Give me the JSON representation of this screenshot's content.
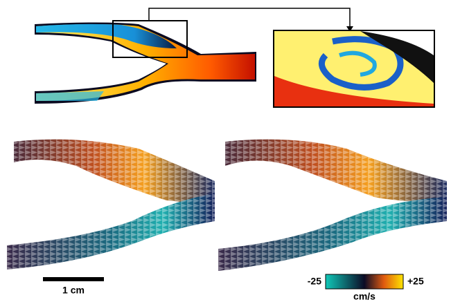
{
  "scale_bar": {
    "label": "1 cm"
  },
  "colorbar": {
    "lim": [
      -25,
      25
    ],
    "ticks": [
      -25,
      {
        "value": 25,
        "label": "+25"
      }
    ],
    "unit": "cm/s"
  }
}
